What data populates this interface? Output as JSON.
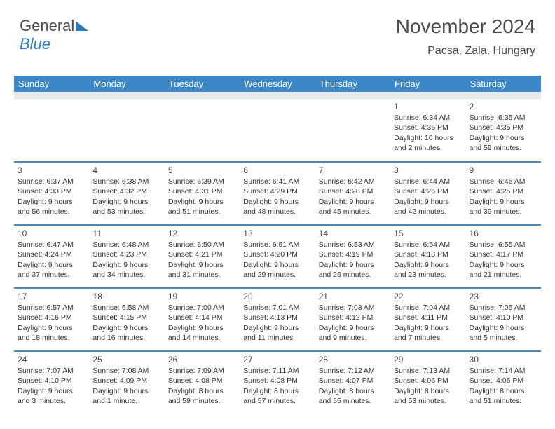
{
  "logo": {
    "text1": "General",
    "text2": "Blue"
  },
  "header": {
    "title": "November 2024",
    "location": "Pacsa, Zala, Hungary"
  },
  "colors": {
    "header_bg": "#3b87c8",
    "row_divider": "#4b89b8",
    "spacer_bg": "#e9ecee",
    "text": "#333333",
    "logo_gray": "#505050",
    "logo_blue": "#2a7bbf"
  },
  "weekdays": [
    "Sunday",
    "Monday",
    "Tuesday",
    "Wednesday",
    "Thursday",
    "Friday",
    "Saturday"
  ],
  "weeks": [
    [
      null,
      null,
      null,
      null,
      null,
      {
        "d": "1",
        "sr": "6:34 AM",
        "ss": "4:36 PM",
        "dl": "10 hours and 2 minutes."
      },
      {
        "d": "2",
        "sr": "6:35 AM",
        "ss": "4:35 PM",
        "dl": "9 hours and 59 minutes."
      }
    ],
    [
      {
        "d": "3",
        "sr": "6:37 AM",
        "ss": "4:33 PM",
        "dl": "9 hours and 56 minutes."
      },
      {
        "d": "4",
        "sr": "6:38 AM",
        "ss": "4:32 PM",
        "dl": "9 hours and 53 minutes."
      },
      {
        "d": "5",
        "sr": "6:39 AM",
        "ss": "4:31 PM",
        "dl": "9 hours and 51 minutes."
      },
      {
        "d": "6",
        "sr": "6:41 AM",
        "ss": "4:29 PM",
        "dl": "9 hours and 48 minutes."
      },
      {
        "d": "7",
        "sr": "6:42 AM",
        "ss": "4:28 PM",
        "dl": "9 hours and 45 minutes."
      },
      {
        "d": "8",
        "sr": "6:44 AM",
        "ss": "4:26 PM",
        "dl": "9 hours and 42 minutes."
      },
      {
        "d": "9",
        "sr": "6:45 AM",
        "ss": "4:25 PM",
        "dl": "9 hours and 39 minutes."
      }
    ],
    [
      {
        "d": "10",
        "sr": "6:47 AM",
        "ss": "4:24 PM",
        "dl": "9 hours and 37 minutes."
      },
      {
        "d": "11",
        "sr": "6:48 AM",
        "ss": "4:23 PM",
        "dl": "9 hours and 34 minutes."
      },
      {
        "d": "12",
        "sr": "6:50 AM",
        "ss": "4:21 PM",
        "dl": "9 hours and 31 minutes."
      },
      {
        "d": "13",
        "sr": "6:51 AM",
        "ss": "4:20 PM",
        "dl": "9 hours and 29 minutes."
      },
      {
        "d": "14",
        "sr": "6:53 AM",
        "ss": "4:19 PM",
        "dl": "9 hours and 26 minutes."
      },
      {
        "d": "15",
        "sr": "6:54 AM",
        "ss": "4:18 PM",
        "dl": "9 hours and 23 minutes."
      },
      {
        "d": "16",
        "sr": "6:55 AM",
        "ss": "4:17 PM",
        "dl": "9 hours and 21 minutes."
      }
    ],
    [
      {
        "d": "17",
        "sr": "6:57 AM",
        "ss": "4:16 PM",
        "dl": "9 hours and 18 minutes."
      },
      {
        "d": "18",
        "sr": "6:58 AM",
        "ss": "4:15 PM",
        "dl": "9 hours and 16 minutes."
      },
      {
        "d": "19",
        "sr": "7:00 AM",
        "ss": "4:14 PM",
        "dl": "9 hours and 14 minutes."
      },
      {
        "d": "20",
        "sr": "7:01 AM",
        "ss": "4:13 PM",
        "dl": "9 hours and 11 minutes."
      },
      {
        "d": "21",
        "sr": "7:03 AM",
        "ss": "4:12 PM",
        "dl": "9 hours and 9 minutes."
      },
      {
        "d": "22",
        "sr": "7:04 AM",
        "ss": "4:11 PM",
        "dl": "9 hours and 7 minutes."
      },
      {
        "d": "23",
        "sr": "7:05 AM",
        "ss": "4:10 PM",
        "dl": "9 hours and 5 minutes."
      }
    ],
    [
      {
        "d": "24",
        "sr": "7:07 AM",
        "ss": "4:10 PM",
        "dl": "9 hours and 3 minutes."
      },
      {
        "d": "25",
        "sr": "7:08 AM",
        "ss": "4:09 PM",
        "dl": "9 hours and 1 minute."
      },
      {
        "d": "26",
        "sr": "7:09 AM",
        "ss": "4:08 PM",
        "dl": "8 hours and 59 minutes."
      },
      {
        "d": "27",
        "sr": "7:11 AM",
        "ss": "4:08 PM",
        "dl": "8 hours and 57 minutes."
      },
      {
        "d": "28",
        "sr": "7:12 AM",
        "ss": "4:07 PM",
        "dl": "8 hours and 55 minutes."
      },
      {
        "d": "29",
        "sr": "7:13 AM",
        "ss": "4:06 PM",
        "dl": "8 hours and 53 minutes."
      },
      {
        "d": "30",
        "sr": "7:14 AM",
        "ss": "4:06 PM",
        "dl": "8 hours and 51 minutes."
      }
    ]
  ],
  "labels": {
    "sunrise": "Sunrise: ",
    "sunset": "Sunset: ",
    "daylight": "Daylight: "
  }
}
